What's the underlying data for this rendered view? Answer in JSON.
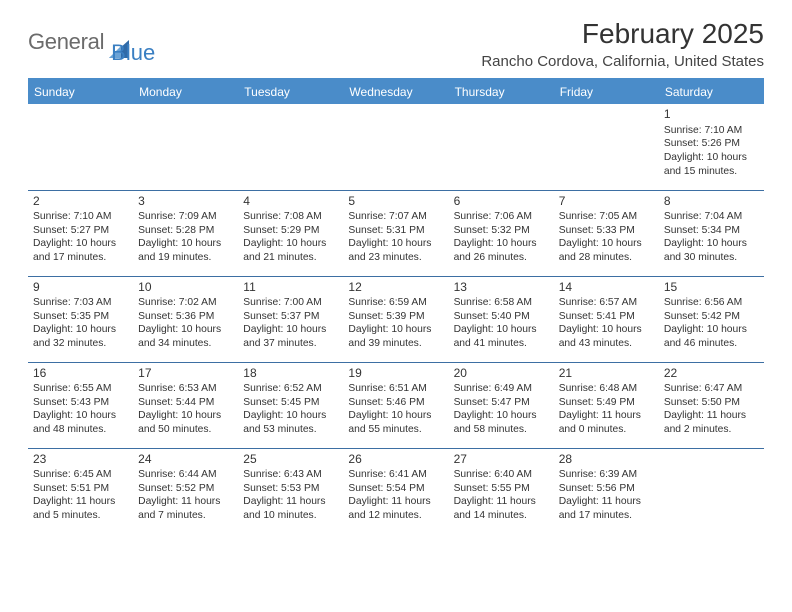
{
  "logo": {
    "word1": "General",
    "word2": "Blue"
  },
  "title": "February 2025",
  "location": "Rancho Cordova, California, United States",
  "colors": {
    "header_bg": "#4a8cc9",
    "row_border": "#3d6fa3",
    "logo_gray": "#6b6b6b",
    "logo_blue": "#3a7fc2"
  },
  "weekdays": [
    "Sunday",
    "Monday",
    "Tuesday",
    "Wednesday",
    "Thursday",
    "Friday",
    "Saturday"
  ],
  "weeks": [
    [
      null,
      null,
      null,
      null,
      null,
      null,
      {
        "n": "1",
        "sr": "7:10 AM",
        "ss": "5:26 PM",
        "dl": "10 hours and 15 minutes."
      }
    ],
    [
      {
        "n": "2",
        "sr": "7:10 AM",
        "ss": "5:27 PM",
        "dl": "10 hours and 17 minutes."
      },
      {
        "n": "3",
        "sr": "7:09 AM",
        "ss": "5:28 PM",
        "dl": "10 hours and 19 minutes."
      },
      {
        "n": "4",
        "sr": "7:08 AM",
        "ss": "5:29 PM",
        "dl": "10 hours and 21 minutes."
      },
      {
        "n": "5",
        "sr": "7:07 AM",
        "ss": "5:31 PM",
        "dl": "10 hours and 23 minutes."
      },
      {
        "n": "6",
        "sr": "7:06 AM",
        "ss": "5:32 PM",
        "dl": "10 hours and 26 minutes."
      },
      {
        "n": "7",
        "sr": "7:05 AM",
        "ss": "5:33 PM",
        "dl": "10 hours and 28 minutes."
      },
      {
        "n": "8",
        "sr": "7:04 AM",
        "ss": "5:34 PM",
        "dl": "10 hours and 30 minutes."
      }
    ],
    [
      {
        "n": "9",
        "sr": "7:03 AM",
        "ss": "5:35 PM",
        "dl": "10 hours and 32 minutes."
      },
      {
        "n": "10",
        "sr": "7:02 AM",
        "ss": "5:36 PM",
        "dl": "10 hours and 34 minutes."
      },
      {
        "n": "11",
        "sr": "7:00 AM",
        "ss": "5:37 PM",
        "dl": "10 hours and 37 minutes."
      },
      {
        "n": "12",
        "sr": "6:59 AM",
        "ss": "5:39 PM",
        "dl": "10 hours and 39 minutes."
      },
      {
        "n": "13",
        "sr": "6:58 AM",
        "ss": "5:40 PM",
        "dl": "10 hours and 41 minutes."
      },
      {
        "n": "14",
        "sr": "6:57 AM",
        "ss": "5:41 PM",
        "dl": "10 hours and 43 minutes."
      },
      {
        "n": "15",
        "sr": "6:56 AM",
        "ss": "5:42 PM",
        "dl": "10 hours and 46 minutes."
      }
    ],
    [
      {
        "n": "16",
        "sr": "6:55 AM",
        "ss": "5:43 PM",
        "dl": "10 hours and 48 minutes."
      },
      {
        "n": "17",
        "sr": "6:53 AM",
        "ss": "5:44 PM",
        "dl": "10 hours and 50 minutes."
      },
      {
        "n": "18",
        "sr": "6:52 AM",
        "ss": "5:45 PM",
        "dl": "10 hours and 53 minutes."
      },
      {
        "n": "19",
        "sr": "6:51 AM",
        "ss": "5:46 PM",
        "dl": "10 hours and 55 minutes."
      },
      {
        "n": "20",
        "sr": "6:49 AM",
        "ss": "5:47 PM",
        "dl": "10 hours and 58 minutes."
      },
      {
        "n": "21",
        "sr": "6:48 AM",
        "ss": "5:49 PM",
        "dl": "11 hours and 0 minutes."
      },
      {
        "n": "22",
        "sr": "6:47 AM",
        "ss": "5:50 PM",
        "dl": "11 hours and 2 minutes."
      }
    ],
    [
      {
        "n": "23",
        "sr": "6:45 AM",
        "ss": "5:51 PM",
        "dl": "11 hours and 5 minutes."
      },
      {
        "n": "24",
        "sr": "6:44 AM",
        "ss": "5:52 PM",
        "dl": "11 hours and 7 minutes."
      },
      {
        "n": "25",
        "sr": "6:43 AM",
        "ss": "5:53 PM",
        "dl": "11 hours and 10 minutes."
      },
      {
        "n": "26",
        "sr": "6:41 AM",
        "ss": "5:54 PM",
        "dl": "11 hours and 12 minutes."
      },
      {
        "n": "27",
        "sr": "6:40 AM",
        "ss": "5:55 PM",
        "dl": "11 hours and 14 minutes."
      },
      {
        "n": "28",
        "sr": "6:39 AM",
        "ss": "5:56 PM",
        "dl": "11 hours and 17 minutes."
      },
      null
    ]
  ],
  "labels": {
    "sunrise": "Sunrise:",
    "sunset": "Sunset:",
    "daylight": "Daylight:"
  }
}
